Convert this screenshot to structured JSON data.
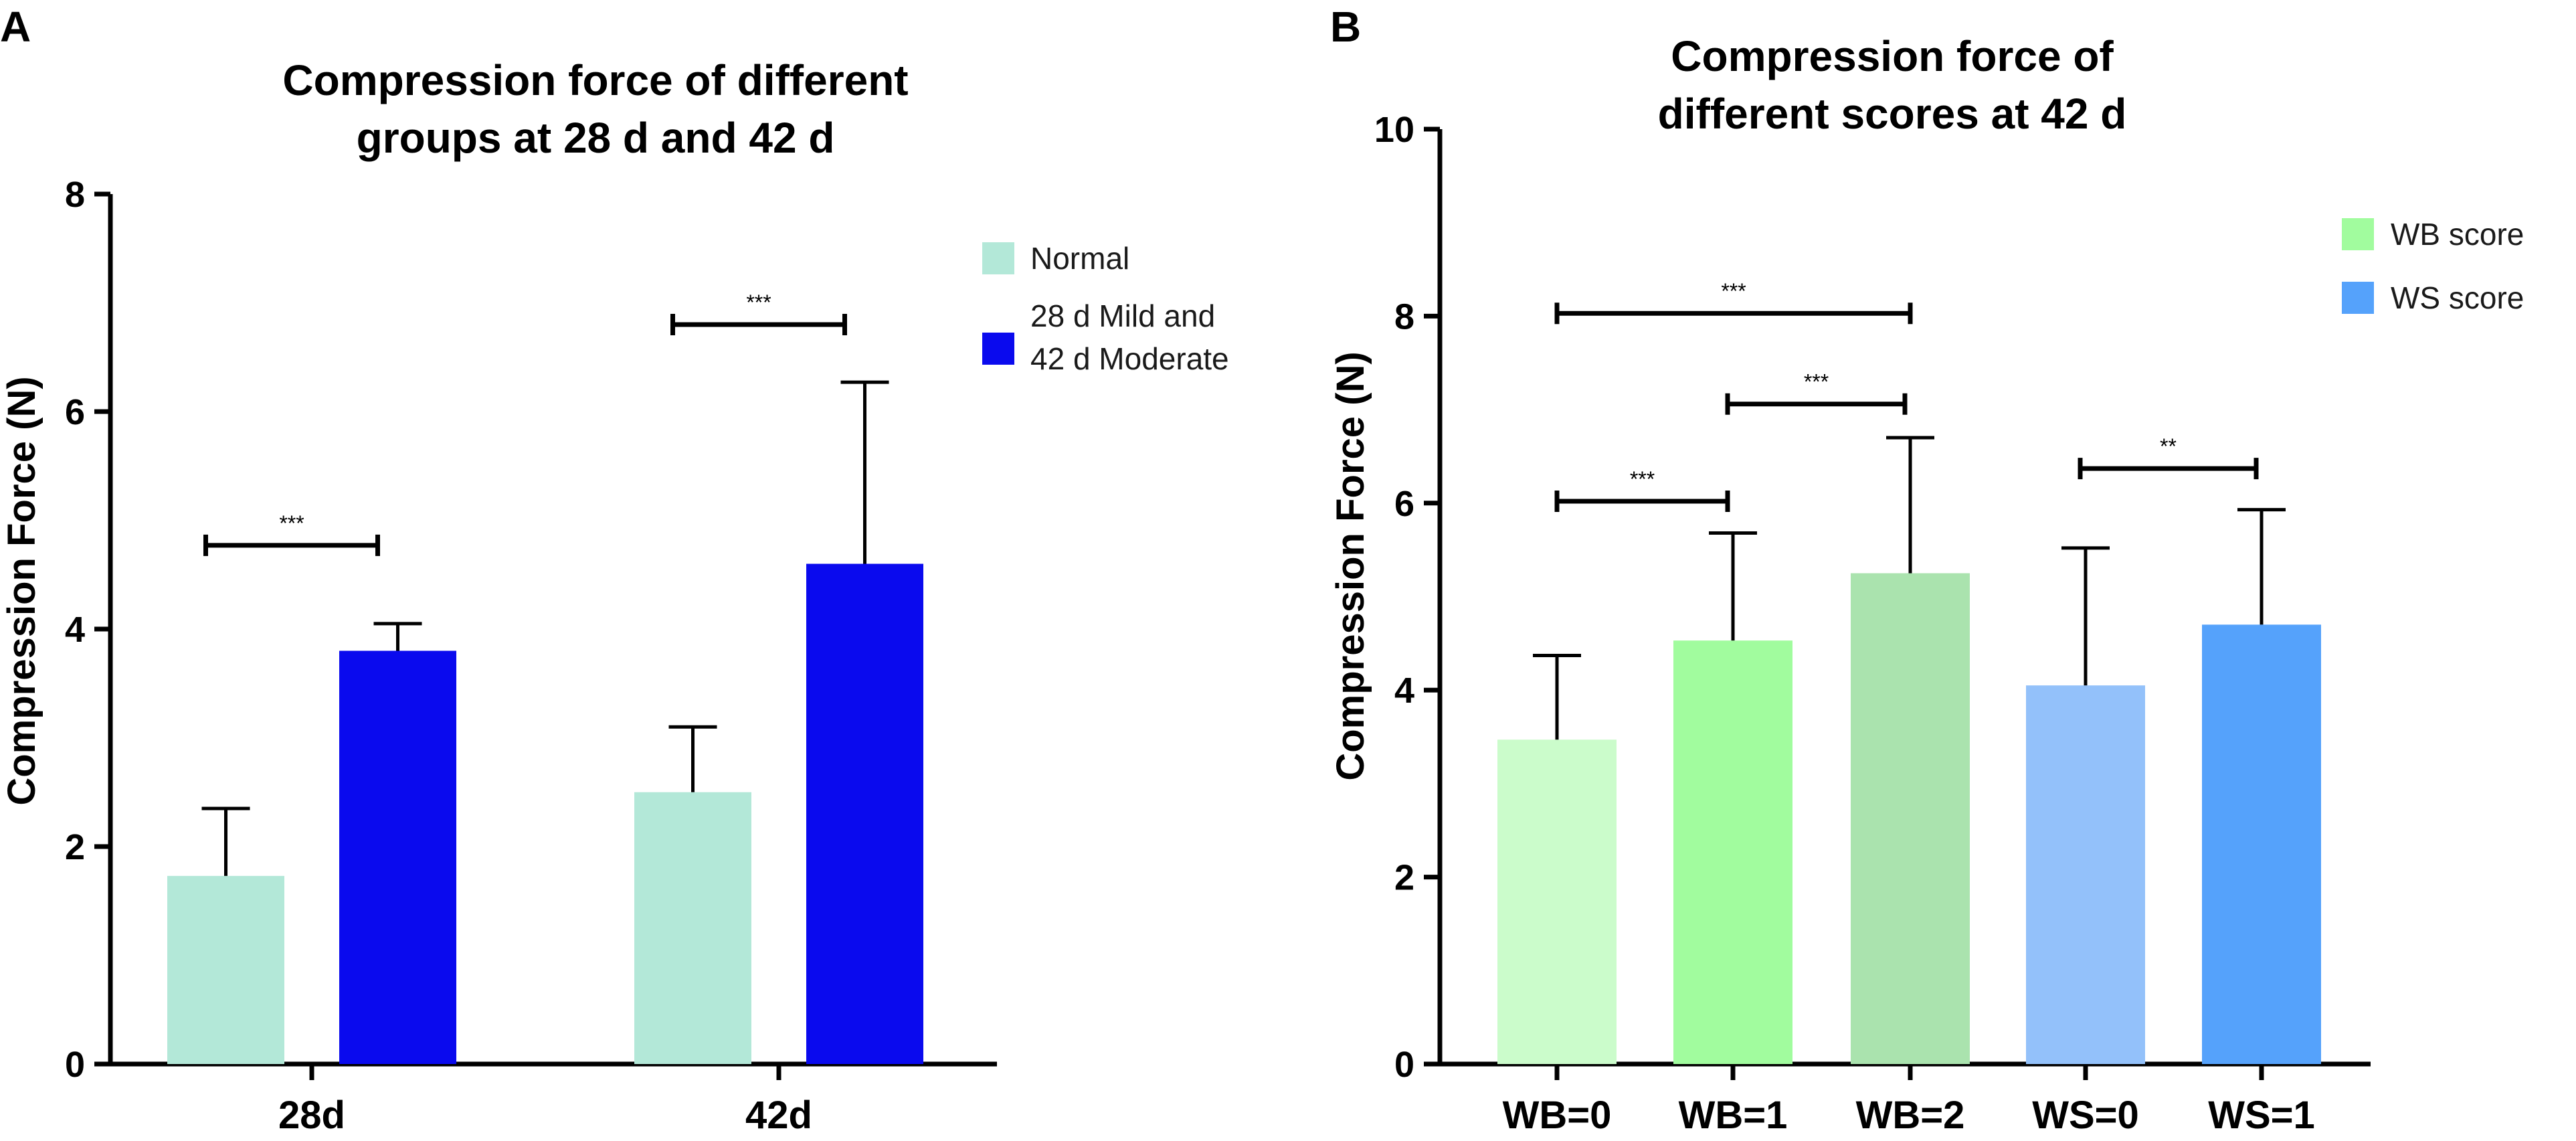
{
  "panels": {
    "a": {
      "letter": "A"
    },
    "b": {
      "letter": "B"
    }
  },
  "chart_data": [
    {
      "type": "bar",
      "title": [
        "Compression force of different",
        "groups at 28 d and 42 d"
      ],
      "xlabel": "",
      "ylabel": "Compression Force (N)",
      "ylim": [
        0,
        8
      ],
      "yticks": [
        0,
        2,
        4,
        6,
        8
      ],
      "categories": [
        "28d",
        "42d"
      ],
      "series": [
        {
          "name": "Normal",
          "color": "#b3e8d8",
          "values": [
            1.73,
            2.5
          ],
          "errors": [
            0.62,
            0.6
          ]
        },
        {
          "name": "28 d Mild and 42 d Moderate",
          "legend_lines": [
            "28 d Mild and",
            "42 d Moderate"
          ],
          "color": "#0a0aee",
          "values": [
            3.8,
            4.6
          ],
          "errors": [
            0.25,
            1.67
          ]
        }
      ],
      "significance": [
        {
          "label": "***",
          "category": "28d",
          "y": 4.77
        },
        {
          "label": "***",
          "category": "42d",
          "y": 6.8
        }
      ],
      "legend_position": "top-right"
    },
    {
      "type": "bar",
      "title": [
        "Compression force of",
        "different scores at 42 d"
      ],
      "xlabel": "",
      "ylabel": "Compression Force (N)",
      "ylim": [
        0,
        10
      ],
      "yticks": [
        0,
        2,
        4,
        6,
        8,
        10
      ],
      "categories": [
        "WB=0",
        "WB=1",
        "WB=2",
        "WS=0",
        "WS=1"
      ],
      "values": [
        3.47,
        4.53,
        5.25,
        4.05,
        4.7
      ],
      "errors": [
        0.9,
        1.15,
        1.45,
        1.47,
        1.23
      ],
      "colors": [
        "#cbfccb",
        "#a1fc9e",
        "#aae3ae",
        "#93c1fa",
        "#55a2fb"
      ],
      "legend": [
        {
          "name": "WB score",
          "color": "#a1fc9e"
        },
        {
          "name": "WS score",
          "color": "#55a2fb"
        }
      ],
      "significance": [
        {
          "label": "***",
          "from": 0,
          "to": 2,
          "y": 8.03
        },
        {
          "label": "***",
          "from": 1,
          "to": 2,
          "y": 7.06
        },
        {
          "label": "***",
          "from": 0,
          "to": 1,
          "y": 6.02
        },
        {
          "label": "**",
          "from": 3,
          "to": 4,
          "y": 6.37
        }
      ],
      "legend_position": "top-right"
    }
  ]
}
